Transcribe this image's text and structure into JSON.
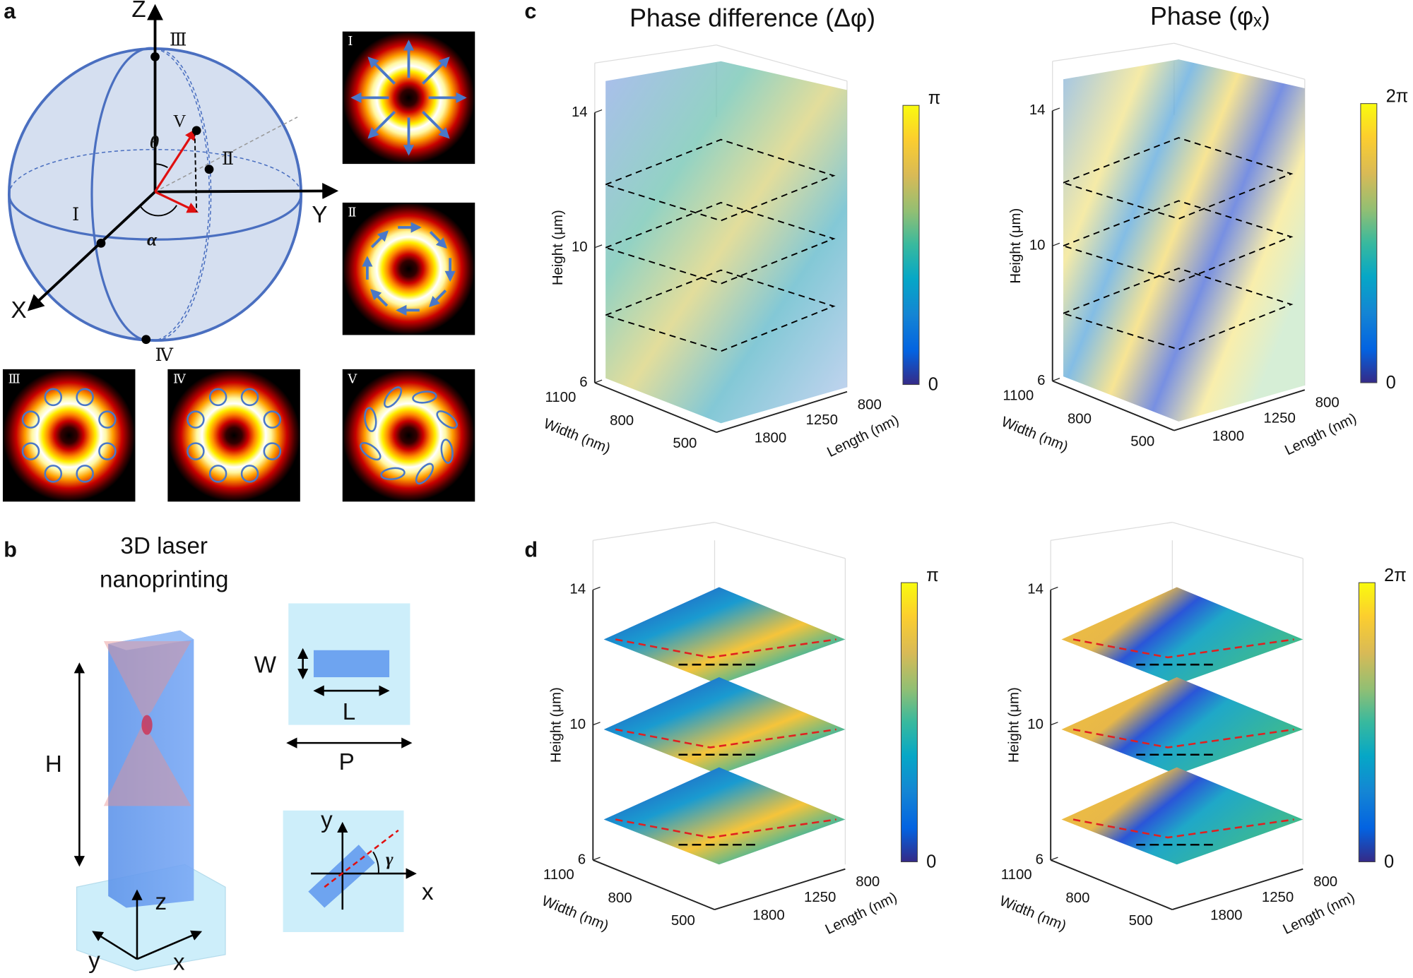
{
  "panels": {
    "a": {
      "label": "a",
      "axes": [
        "Z",
        "Y",
        "X"
      ],
      "points": [
        "Ⅲ",
        "Ⅱ",
        "Ⅰ",
        "Ⅳ",
        "V"
      ],
      "angles": [
        "θ",
        "α"
      ],
      "insets": [
        "Ⅰ",
        "Ⅱ",
        "Ⅲ",
        "Ⅳ",
        "Ⅴ"
      ]
    },
    "b": {
      "label": "b",
      "title": [
        "3D laser",
        "nanoprinting"
      ],
      "dims": [
        "H",
        "W",
        "L",
        "P"
      ],
      "axes": [
        "z",
        "y",
        "x"
      ],
      "rot_axes": [
        "y",
        "x"
      ],
      "angle": "γ"
    },
    "c": {
      "label": "c",
      "plots": [
        {
          "title": "Phase difference (Δφ)",
          "colorbar": [
            "π",
            0
          ]
        },
        {
          "title": "Phase (φₓ)",
          "colorbar": [
            "2π",
            0
          ]
        }
      ]
    },
    "d": {
      "label": "d",
      "plots": [
        {
          "colorbar": [
            "π",
            0
          ]
        },
        {
          "colorbar": [
            "2π",
            0
          ]
        }
      ]
    }
  },
  "axes": {
    "height_label": "Height (μm)",
    "height_ticks": [
      14,
      10,
      6
    ],
    "width_label": "Width (nm)",
    "width_ticks": [
      1100,
      800,
      500
    ],
    "length_label": "Length (nm)",
    "length_ticks": [
      800,
      1250,
      1800
    ]
  }
}
